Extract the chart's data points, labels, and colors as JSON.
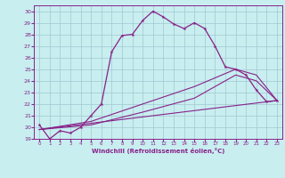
{
  "xlabel": "Windchill (Refroidissement éolien,°C)",
  "xlim": [
    -0.5,
    23.5
  ],
  "ylim": [
    19,
    30.5
  ],
  "yticks": [
    19,
    20,
    21,
    22,
    23,
    24,
    25,
    26,
    27,
    28,
    29,
    30
  ],
  "xticks": [
    0,
    1,
    2,
    3,
    4,
    5,
    6,
    7,
    8,
    9,
    10,
    11,
    12,
    13,
    14,
    15,
    16,
    17,
    18,
    19,
    20,
    21,
    22,
    23
  ],
  "bg_color": "#c8eef0",
  "grid_color": "#a0c8d0",
  "line_color": "#882288",
  "line1_x": [
    0,
    1,
    2,
    3,
    4,
    5,
    6,
    7,
    8,
    9,
    10,
    11,
    12,
    13,
    14,
    15,
    16,
    17,
    18,
    19,
    20,
    21,
    22,
    23
  ],
  "line1_y": [
    20.2,
    19.0,
    19.7,
    19.5,
    20.0,
    21.0,
    22.0,
    26.5,
    27.9,
    28.0,
    29.2,
    30.0,
    29.5,
    28.9,
    28.5,
    29.0,
    28.5,
    27.0,
    25.2,
    25.0,
    24.5,
    23.2,
    22.2,
    22.3
  ],
  "line2_x": [
    0,
    23
  ],
  "line2_y": [
    19.8,
    22.3
  ],
  "line3_x": [
    0,
    5,
    10,
    15,
    19,
    21,
    23
  ],
  "line3_y": [
    19.8,
    20.5,
    22.0,
    23.5,
    25.0,
    24.5,
    22.3
  ],
  "line4_x": [
    0,
    5,
    10,
    15,
    19,
    21,
    23
  ],
  "line4_y": [
    19.8,
    20.2,
    21.3,
    22.5,
    24.5,
    24.0,
    22.3
  ]
}
